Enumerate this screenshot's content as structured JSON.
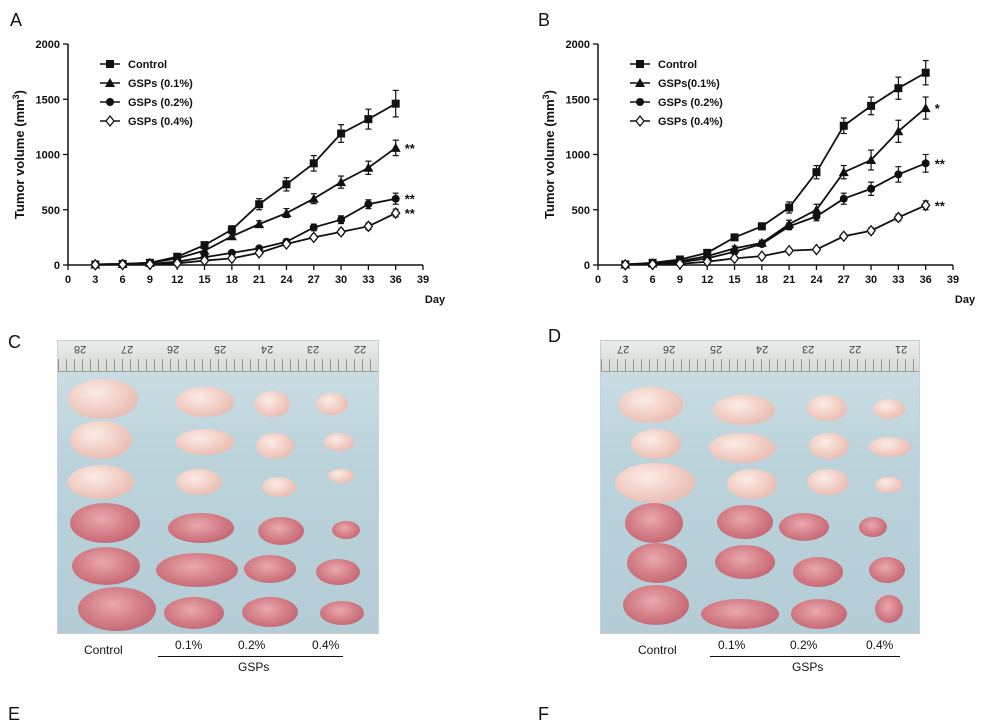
{
  "panels": {
    "a": "A",
    "b": "B",
    "c": "C",
    "d": "D",
    "e": "E",
    "f": "F"
  },
  "chart_data": [
    {
      "type": "line",
      "panel": "A",
      "ylabel_main": "Tumor volume (mm",
      "ylabel_sup": "3",
      "ylabel_close": ")",
      "xlabel": "Day",
      "x_ticks": [
        0,
        3,
        6,
        9,
        12,
        15,
        18,
        21,
        24,
        27,
        30,
        33,
        36,
        39
      ],
      "y_ticks": [
        0,
        500,
        1000,
        1500,
        2000
      ],
      "xlim": [
        0,
        39
      ],
      "ylim": [
        0,
        2000
      ],
      "legend_position": "top-left",
      "x": [
        3,
        6,
        9,
        12,
        15,
        18,
        21,
        24,
        27,
        30,
        33,
        36
      ],
      "series": [
        {
          "name": "Control",
          "marker": "square",
          "values": [
            5,
            10,
            20,
            75,
            180,
            320,
            550,
            730,
            920,
            1190,
            1320,
            1460
          ],
          "errors": [
            5,
            8,
            10,
            20,
            25,
            35,
            50,
            60,
            70,
            80,
            90,
            120
          ],
          "significance": ""
        },
        {
          "name": "GSPs (0.1%)",
          "marker": "triangle",
          "values": [
            5,
            10,
            20,
            60,
            130,
            260,
            370,
            470,
            600,
            750,
            880,
            1060
          ],
          "errors": [
            5,
            6,
            8,
            15,
            20,
            25,
            30,
            40,
            45,
            55,
            60,
            70
          ],
          "significance": "**"
        },
        {
          "name": "GSPs (0.2%)",
          "marker": "circle",
          "values": [
            3,
            5,
            10,
            30,
            70,
            110,
            150,
            210,
            340,
            410,
            550,
            600
          ],
          "errors": [
            3,
            4,
            6,
            10,
            12,
            15,
            20,
            25,
            30,
            35,
            40,
            50
          ],
          "significance": "**"
        },
        {
          "name": "GSPs (0.4%)",
          "marker": "diamond",
          "values": [
            2,
            4,
            6,
            15,
            40,
            60,
            110,
            190,
            250,
            300,
            350,
            470
          ],
          "errors": [
            2,
            3,
            4,
            6,
            8,
            10,
            15,
            20,
            20,
            25,
            30,
            35
          ],
          "significance": "**"
        }
      ]
    },
    {
      "type": "line",
      "panel": "B",
      "ylabel_main": "Tumor volume (mm",
      "ylabel_sup": "3",
      "ylabel_close": ")",
      "xlabel": "Day",
      "x_ticks": [
        0,
        3,
        6,
        9,
        12,
        15,
        18,
        21,
        24,
        27,
        30,
        33,
        36,
        39
      ],
      "y_ticks": [
        0,
        500,
        1000,
        1500,
        2000
      ],
      "xlim": [
        0,
        39
      ],
      "ylim": [
        0,
        2000
      ],
      "legend_position": "top-left",
      "x": [
        3,
        6,
        9,
        12,
        15,
        18,
        21,
        24,
        27,
        30,
        33,
        36
      ],
      "series": [
        {
          "name": "Control",
          "marker": "square",
          "values": [
            5,
            20,
            50,
            110,
            250,
            350,
            520,
            840,
            1260,
            1440,
            1600,
            1740
          ],
          "errors": [
            5,
            8,
            10,
            15,
            25,
            30,
            50,
            60,
            70,
            80,
            100,
            110
          ],
          "significance": ""
        },
        {
          "name": "GSPs(0.1%)",
          "marker": "triangle",
          "values": [
            5,
            15,
            35,
            80,
            150,
            200,
            370,
            500,
            840,
            950,
            1210,
            1420
          ],
          "errors": [
            5,
            6,
            10,
            15,
            20,
            25,
            35,
            50,
            60,
            90,
            100,
            100
          ],
          "significance": "*"
        },
        {
          "name": "GSPs (0.2%)",
          "marker": "circle",
          "values": [
            3,
            10,
            25,
            60,
            120,
            190,
            350,
            440,
            600,
            690,
            820,
            920
          ],
          "errors": [
            3,
            5,
            8,
            12,
            18,
            20,
            30,
            40,
            50,
            60,
            70,
            80
          ],
          "significance": "**"
        },
        {
          "name": "GSPs (0.4%)",
          "marker": "diamond",
          "values": [
            2,
            5,
            10,
            30,
            60,
            80,
            130,
            140,
            260,
            310,
            430,
            540
          ],
          "errors": [
            2,
            3,
            5,
            8,
            10,
            10,
            15,
            15,
            20,
            25,
            30,
            40
          ],
          "significance": "**"
        }
      ]
    }
  ],
  "photo_c": {
    "ruler_numbers": [
      "28",
      "27",
      "26",
      "25",
      "24",
      "23",
      "22"
    ],
    "group_labels": {
      "control": "Control",
      "g1": "0.1%",
      "g2": "0.2%",
      "g3": "0.4%",
      "gsps": "GSPs"
    }
  },
  "photo_d": {
    "ruler_numbers": [
      "27",
      "26",
      "25",
      "24",
      "23",
      "22",
      "21"
    ],
    "group_labels": {
      "control": "Control",
      "g1": "0.1%",
      "g2": "0.2%",
      "g3": "0.4%",
      "gsps": "GSPs"
    }
  },
  "colors": {
    "line": "#111111",
    "background": "#ffffff"
  }
}
